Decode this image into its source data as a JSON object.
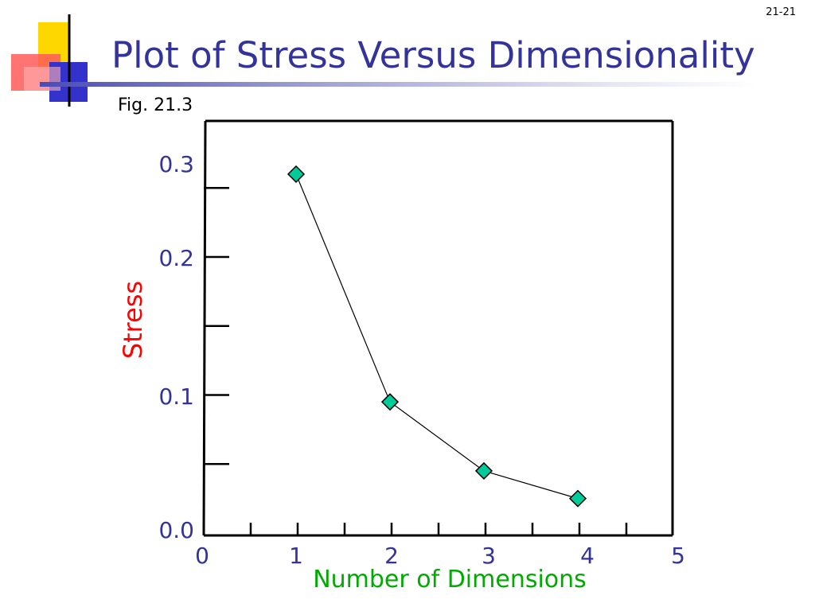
{
  "slide": {
    "number": "21-21",
    "title": "Plot of Stress Versus Dimensionality",
    "figure_label": "Fig. 21.3"
  },
  "colors": {
    "title": "#333399",
    "ticks": "#333399",
    "ylabel": "#ff0000",
    "xlabel": "#00aa00",
    "marker": "#00cc99",
    "line": "#000000",
    "deco_yellow": "#ffd700",
    "deco_red": "#ff4d4d",
    "deco_blue": "#3333cc"
  },
  "chart_data": {
    "type": "line",
    "title": "",
    "xlabel": "Number of Dimensions",
    "ylabel": "Stress",
    "xlim": [
      0,
      5
    ],
    "ylim": [
      0,
      0.3
    ],
    "x_ticks": [
      0,
      1,
      2,
      3,
      4,
      5
    ],
    "x_tick_labels": [
      "0",
      "1",
      "2",
      "3",
      "4",
      "5"
    ],
    "y_ticks": [
      0.0,
      0.1,
      0.2,
      0.3
    ],
    "y_tick_labels": [
      "0.0",
      "0.1",
      "0.2",
      "0.3"
    ],
    "x_minor_step": 0.5,
    "y_minor_step": 0.05,
    "grid": false,
    "series": [
      {
        "x": [
          1,
          2,
          3,
          4
        ],
        "values": [
          0.26,
          0.095,
          0.045,
          0.025
        ]
      }
    ]
  }
}
